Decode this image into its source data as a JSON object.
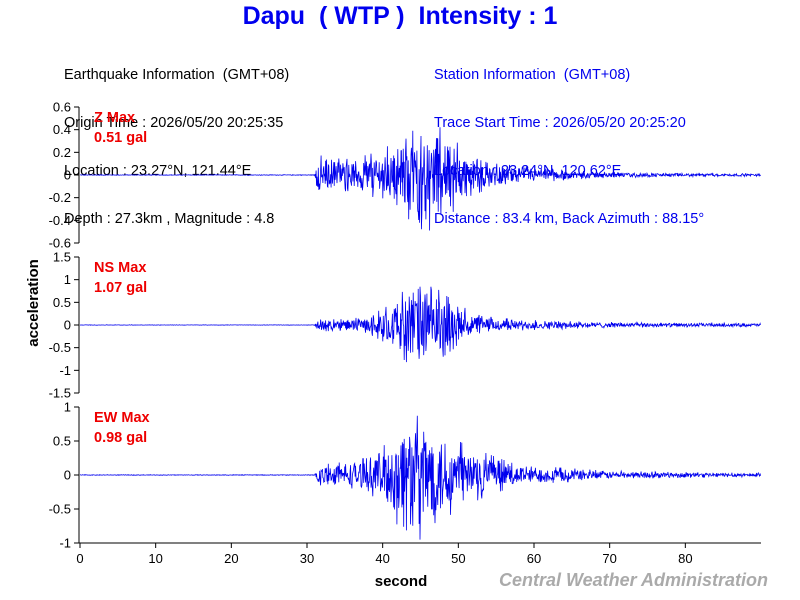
{
  "title": "Dapu  ( WTP )  Intensity : 1",
  "earthquake_info": {
    "heading": "Earthquake Information  (GMT+08)",
    "origin_time": "Origin Time : 2026/05/20 20:25:35",
    "location": "Location : 23.27°N, 121.44°E",
    "depth_magnitude": "Depth : 27.3km , Magnitude : 4.8"
  },
  "station_info": {
    "heading": "Station Information  (GMT+08)",
    "trace_start": "Trace Start Time : 2026/05/20 20:25:20",
    "location": "Location : 23.24°N, 120.62°E",
    "distance_azimuth": "Distance : 83.4 km, Back Azimuth : 88.15°"
  },
  "watermark": "Central Weather Administration",
  "colors": {
    "trace": "#0000ee",
    "max_label": "#ee0000",
    "title": "#0000ee"
  },
  "chart_data": {
    "type": "line",
    "xlabel": "second",
    "ylabel": "acceleration",
    "xlim": [
      0,
      90
    ],
    "x_ticks": [
      0,
      10,
      20,
      30,
      40,
      50,
      60,
      70,
      80
    ],
    "grid": false,
    "panels": [
      {
        "name": "Z",
        "max_label": "Z Max",
        "max_value": "0.51 gal",
        "ylim": [
          -0.6,
          0.6
        ],
        "y_ticks": [
          0.6,
          0.4,
          0.2,
          0,
          -0.2,
          -0.4,
          -0.6
        ],
        "y_tick_labels": [
          "0.6",
          "0.4",
          "0.2",
          "0",
          "-0.2",
          "-0.4",
          "-0.6"
        ],
        "envelope": [
          [
            0,
            0.003
          ],
          [
            31,
            0.003
          ],
          [
            31.5,
            0.2
          ],
          [
            33,
            0.15
          ],
          [
            36,
            0.14
          ],
          [
            39,
            0.2
          ],
          [
            42,
            0.3
          ],
          [
            44,
            0.45
          ],
          [
            46,
            0.5
          ],
          [
            47,
            0.45
          ],
          [
            49,
            0.35
          ],
          [
            51,
            0.2
          ],
          [
            55,
            0.1
          ],
          [
            60,
            0.07
          ],
          [
            65,
            0.04
          ],
          [
            70,
            0.025
          ],
          [
            80,
            0.015
          ],
          [
            90,
            0.012
          ]
        ]
      },
      {
        "name": "NS",
        "max_label": "NS Max",
        "max_value": "1.07 gal",
        "ylim": [
          -1.5,
          1.5
        ],
        "y_ticks": [
          1.5,
          1,
          0.5,
          0,
          -0.5,
          -1,
          -1.5
        ],
        "y_tick_labels": [
          "1.5",
          "1",
          "0.5",
          "0",
          "-0.5",
          "-1",
          "-1.5"
        ],
        "envelope": [
          [
            0,
            0.005
          ],
          [
            31,
            0.005
          ],
          [
            31.5,
            0.15
          ],
          [
            34,
            0.12
          ],
          [
            38,
            0.18
          ],
          [
            41,
            0.45
          ],
          [
            43,
            0.8
          ],
          [
            45,
            1.05
          ],
          [
            46,
            0.95
          ],
          [
            48,
            0.7
          ],
          [
            50,
            0.45
          ],
          [
            53,
            0.2
          ],
          [
            58,
            0.12
          ],
          [
            65,
            0.08
          ],
          [
            75,
            0.05
          ],
          [
            90,
            0.04
          ]
        ]
      },
      {
        "name": "EW",
        "max_label": "EW Max",
        "max_value": "0.98 gal",
        "ylim": [
          -1,
          1
        ],
        "y_ticks": [
          1,
          0.5,
          0,
          -0.5,
          -1
        ],
        "y_tick_labels": [
          "1",
          "0.5",
          "0",
          "-0.5",
          "-1"
        ],
        "envelope": [
          [
            0,
            0.005
          ],
          [
            31,
            0.005
          ],
          [
            31.5,
            0.15
          ],
          [
            34,
            0.18
          ],
          [
            38,
            0.25
          ],
          [
            41,
            0.55
          ],
          [
            43,
            0.95
          ],
          [
            45,
            0.95
          ],
          [
            47,
            0.75
          ],
          [
            50,
            0.5
          ],
          [
            53,
            0.35
          ],
          [
            57,
            0.18
          ],
          [
            62,
            0.12
          ],
          [
            70,
            0.06
          ],
          [
            80,
            0.04
          ],
          [
            90,
            0.03
          ]
        ]
      }
    ]
  }
}
